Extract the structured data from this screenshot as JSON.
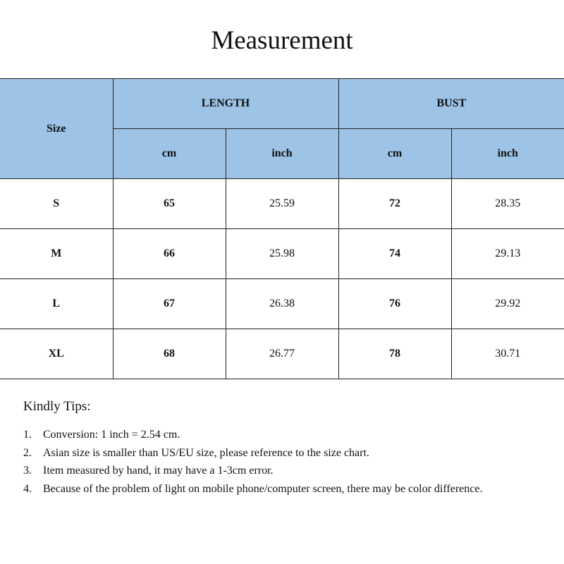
{
  "title": "Measurement",
  "table": {
    "size_header": "Size",
    "groups": [
      "LENGTH",
      "BUST"
    ],
    "units": [
      "cm",
      "inch",
      "cm",
      "inch"
    ],
    "rows": [
      {
        "size": "S",
        "length_cm": "65",
        "length_inch": "25.59",
        "bust_cm": "72",
        "bust_inch": "28.35"
      },
      {
        "size": "M",
        "length_cm": "66",
        "length_inch": "25.98",
        "bust_cm": "74",
        "bust_inch": "29.13"
      },
      {
        "size": "L",
        "length_cm": "67",
        "length_inch": "26.38",
        "bust_cm": "76",
        "bust_inch": "29.92"
      },
      {
        "size": "XL",
        "length_cm": "68",
        "length_inch": "26.77",
        "bust_cm": "78",
        "bust_inch": "30.71"
      }
    ],
    "header_color": "#9DC3E6"
  },
  "tips": {
    "heading": "Kindly Tips:",
    "items": [
      {
        "num": "1.",
        "text": "Conversion: 1 inch = 2.54 cm."
      },
      {
        "num": "2.",
        "text": "Asian size is smaller than US/EU size, please reference to the size chart."
      },
      {
        "num": "3.",
        "text": "Item measured by hand, it may have a 1-3cm error."
      },
      {
        "num": "4.",
        "text": "Because of the problem of light on mobile phone/computer screen, there may be color difference."
      }
    ]
  }
}
